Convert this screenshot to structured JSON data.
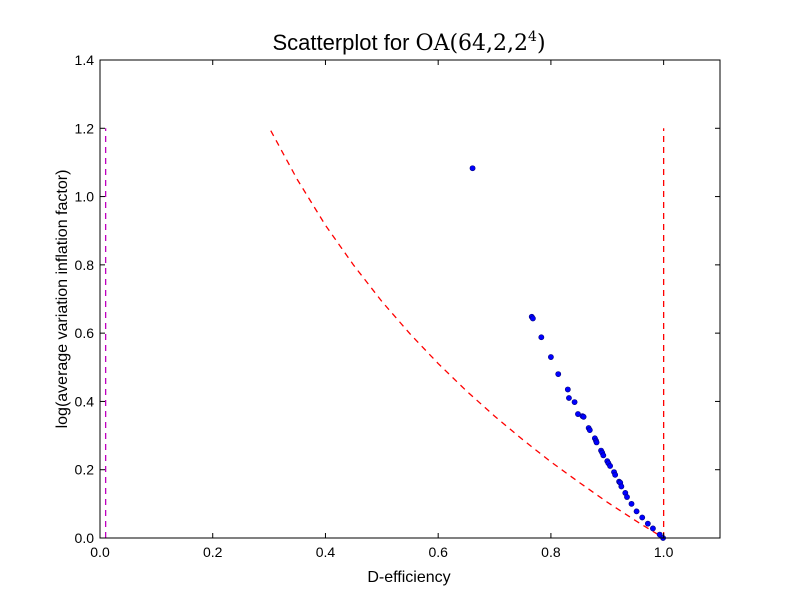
{
  "chart_data": {
    "type": "scatter",
    "title": {
      "prefix": "Scatterplot for ",
      "math_base": "OA(64,2,2",
      "math_sup": "4",
      "math_close": ")"
    },
    "xlabel": "D-efficiency",
    "ylabel": "log(average variation inflation factor)",
    "xlim": [
      0.0,
      1.1
    ],
    "ylim": [
      0.0,
      1.4
    ],
    "xticks": [
      0.0,
      0.2,
      0.4,
      0.6,
      0.8,
      1.0
    ],
    "yticks": [
      0.0,
      0.2,
      0.4,
      0.6,
      0.8,
      1.0,
      1.2,
      1.4
    ],
    "xtick_labels": [
      "0.0",
      "0.2",
      "0.4",
      "0.6",
      "0.8",
      "1.0"
    ],
    "ytick_labels": [
      "0.0",
      "0.2",
      "0.4",
      "0.6",
      "0.8",
      "1.0",
      "1.2",
      "1.4"
    ],
    "grid": false,
    "points": {
      "color": "#0000ff",
      "x": [
        0.661,
        0.766,
        0.768,
        0.783,
        0.8,
        0.813,
        0.83,
        0.832,
        0.842,
        0.848,
        0.856,
        0.858,
        0.867,
        0.869,
        0.878,
        0.88,
        0.881,
        0.889,
        0.891,
        0.893,
        0.9,
        0.902,
        0.905,
        0.912,
        0.914,
        0.921,
        0.923,
        0.925,
        0.932,
        0.935,
        0.943,
        0.952,
        0.962,
        0.972,
        0.981,
        0.993,
        0.999
      ],
      "y": [
        1.083,
        0.648,
        0.643,
        0.588,
        0.53,
        0.48,
        0.435,
        0.41,
        0.398,
        0.363,
        0.357,
        0.355,
        0.322,
        0.316,
        0.292,
        0.285,
        0.28,
        0.256,
        0.25,
        0.242,
        0.225,
        0.219,
        0.211,
        0.193,
        0.185,
        0.165,
        0.162,
        0.151,
        0.132,
        0.12,
        0.1,
        0.078,
        0.06,
        0.042,
        0.028,
        0.01,
        0.0
      ]
    },
    "reference_lines": [
      {
        "kind": "curve",
        "style": "dashed",
        "color": "#ff0000",
        "x": [
          0.303,
          0.35,
          0.4,
          0.45,
          0.5,
          0.55,
          0.6,
          0.65,
          0.7,
          0.75,
          0.8,
          0.85,
          0.9,
          0.95,
          1.0
        ],
        "y": [
          1.193,
          1.05,
          0.916,
          0.799,
          0.693,
          0.598,
          0.511,
          0.431,
          0.357,
          0.288,
          0.223,
          0.163,
          0.105,
          0.051,
          0.0
        ]
      },
      {
        "kind": "vertical",
        "style": "dashed",
        "color": "#ff0000",
        "x": [
          1.0,
          1.0
        ],
        "y": [
          0.0,
          1.2
        ]
      },
      {
        "kind": "vertical",
        "style": "dashed",
        "color": "#bf00bf",
        "x": [
          0.01,
          0.01
        ],
        "y": [
          0.0,
          1.2
        ]
      }
    ]
  }
}
